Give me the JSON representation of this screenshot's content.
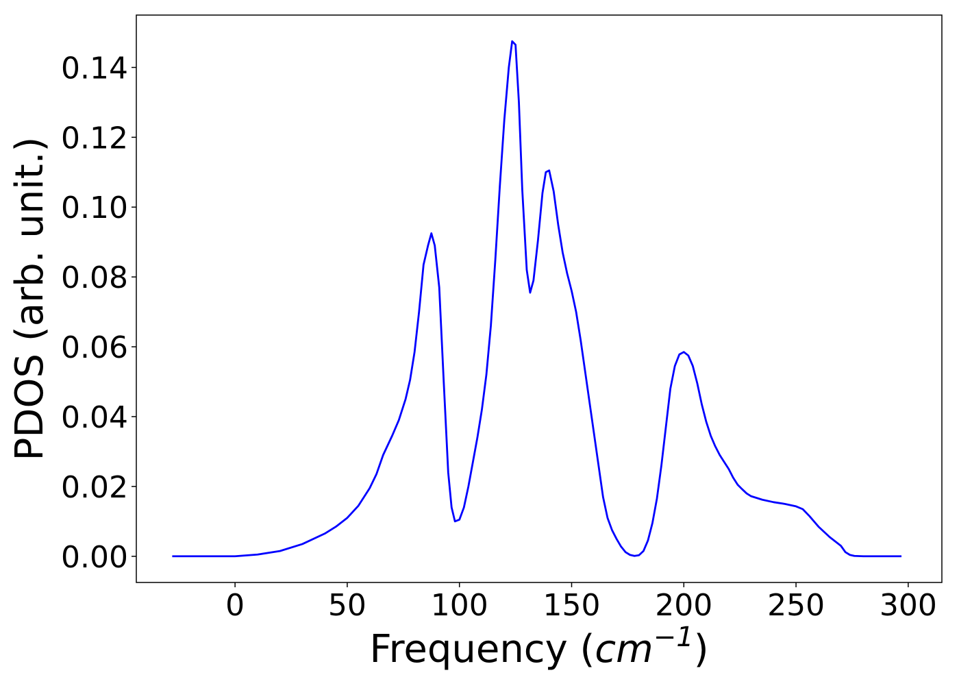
{
  "chart_data": {
    "type": "line",
    "title": "",
    "xlabel": "Frequency",
    "xlabel_unit": "cm",
    "xlabel_unit_exponent": "−1",
    "ylabel": "PDOS (arb. unit.)",
    "xlim": [
      -44,
      315
    ],
    "ylim": [
      -0.0075,
      0.155
    ],
    "xticks": [
      0,
      50,
      100,
      150,
      200,
      250,
      300
    ],
    "xtick_labels": [
      "0",
      "50",
      "100",
      "150",
      "200",
      "250",
      "300"
    ],
    "yticks": [
      0.0,
      0.02,
      0.04,
      0.06,
      0.08,
      0.1,
      0.12,
      0.14
    ],
    "ytick_labels": [
      "0.00",
      "0.02",
      "0.04",
      "0.06",
      "0.08",
      "0.10",
      "0.12",
      "0.14"
    ],
    "grid": false,
    "legend": "none",
    "series": [
      {
        "color": "#0000ff",
        "x": [
          -28,
          0,
          10,
          20,
          30,
          40,
          45,
          50,
          55,
          60,
          63,
          66,
          70,
          73,
          76,
          78,
          80,
          82,
          84,
          86,
          87.5,
          89,
          91,
          93,
          95,
          96.5,
          98,
          100,
          102,
          104,
          106,
          108,
          110,
          112,
          114,
          116,
          118,
          120,
          122,
          123.5,
          125,
          126.5,
          128,
          130,
          131.5,
          133,
          135,
          137,
          138.5,
          140,
          142,
          144,
          146,
          148,
          150,
          152,
          154,
          156,
          158,
          160,
          162,
          164,
          166,
          168,
          170,
          172,
          174,
          176,
          178,
          180,
          182,
          184,
          186,
          188,
          190,
          192,
          194,
          196,
          198,
          200,
          202,
          204,
          206,
          208,
          210,
          212,
          214,
          216,
          218,
          220,
          222,
          224,
          226,
          228,
          230,
          235,
          240,
          245,
          250,
          253,
          256,
          260,
          265,
          270,
          272,
          274,
          276,
          280,
          290,
          297
        ],
        "y": [
          0.0,
          0.0,
          0.0005,
          0.0015,
          0.0035,
          0.0065,
          0.0085,
          0.011,
          0.0145,
          0.0195,
          0.0235,
          0.029,
          0.0345,
          0.039,
          0.045,
          0.0505,
          0.0585,
          0.07,
          0.0835,
          0.089,
          0.0925,
          0.089,
          0.077,
          0.05,
          0.024,
          0.014,
          0.01,
          0.0105,
          0.014,
          0.02,
          0.027,
          0.034,
          0.042,
          0.052,
          0.066,
          0.085,
          0.106,
          0.125,
          0.14,
          0.1475,
          0.1465,
          0.13,
          0.105,
          0.082,
          0.0755,
          0.079,
          0.0905,
          0.104,
          0.11,
          0.1105,
          0.1045,
          0.095,
          0.087,
          0.081,
          0.076,
          0.07,
          0.062,
          0.053,
          0.044,
          0.035,
          0.026,
          0.017,
          0.011,
          0.0075,
          0.005,
          0.0028,
          0.0012,
          0.0004,
          0.0001,
          0.0003,
          0.0015,
          0.0045,
          0.0095,
          0.0165,
          0.026,
          0.037,
          0.048,
          0.0545,
          0.0578,
          0.0585,
          0.0575,
          0.0545,
          0.0495,
          0.0435,
          0.0385,
          0.0345,
          0.0315,
          0.029,
          0.027,
          0.025,
          0.0225,
          0.0205,
          0.0192,
          0.018,
          0.0172,
          0.0162,
          0.0155,
          0.015,
          0.0143,
          0.0135,
          0.0115,
          0.0085,
          0.0055,
          0.003,
          0.0012,
          0.0004,
          0.0001,
          0.0,
          0.0,
          0.0
        ]
      }
    ]
  }
}
